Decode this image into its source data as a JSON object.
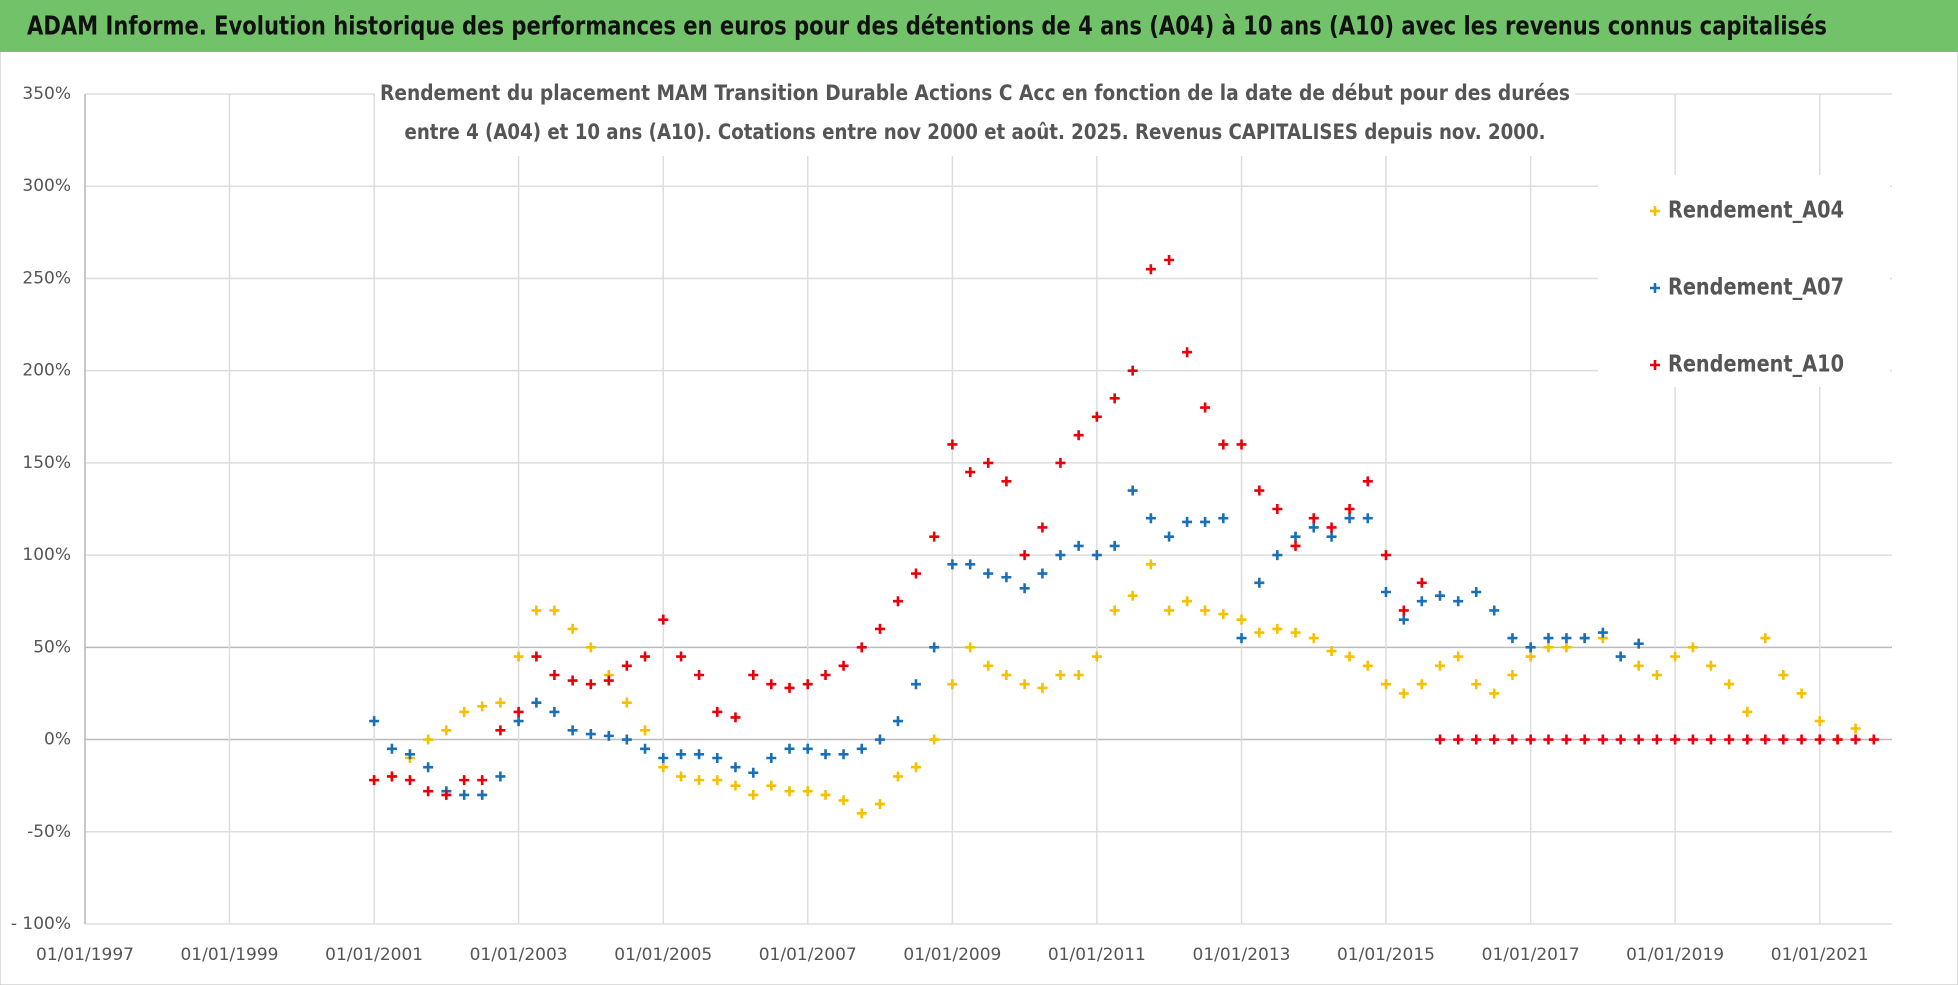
{
  "chart_data": {
    "type": "scatter",
    "title": "ADAM Informe. Evolution historique des performances en euros pour des détentions de 4 ans (A04) à 10 ans (A10) avec les revenus connus capitalisés",
    "subtitle": [
      "Rendement du placement MAM Transition Durable Actions C Acc en fonction de la date de début pour des durées",
      "entre 4 (A04) et 10 ans (A10). Cotations entre nov 2000 et août. 2025. Revenus CAPITALISES depuis nov. 2000."
    ],
    "x": [
      "01/01/2001",
      "01/04/2001",
      "01/07/2001",
      "01/10/2001",
      "01/01/2002",
      "01/04/2002",
      "01/07/2002",
      "01/10/2002",
      "01/01/2003",
      "01/04/2003",
      "01/07/2003",
      "01/10/2003",
      "01/01/2004",
      "01/04/2004",
      "01/07/2004",
      "01/10/2004",
      "01/01/2005",
      "01/04/2005",
      "01/07/2005",
      "01/10/2005",
      "01/01/2006",
      "01/04/2006",
      "01/07/2006",
      "01/10/2006",
      "01/01/2007",
      "01/04/2007",
      "01/07/2007",
      "01/10/2007",
      "01/01/2008",
      "01/04/2008",
      "01/07/2008",
      "01/10/2008",
      "01/01/2009",
      "01/04/2009",
      "01/07/2009",
      "01/10/2009",
      "01/01/2010",
      "01/04/2010",
      "01/07/2010",
      "01/10/2010",
      "01/01/2011",
      "01/04/2011",
      "01/07/2011",
      "01/10/2011",
      "01/01/2012",
      "01/04/2012",
      "01/07/2012",
      "01/10/2012",
      "01/01/2013",
      "01/04/2013",
      "01/07/2013",
      "01/10/2013",
      "01/01/2014",
      "01/04/2014",
      "01/07/2014",
      "01/10/2014",
      "01/01/2015",
      "01/04/2015",
      "01/07/2015",
      "01/10/2015",
      "01/01/2016",
      "01/04/2016",
      "01/07/2016",
      "01/10/2016",
      "01/01/2017",
      "01/04/2017",
      "01/07/2017",
      "01/10/2017",
      "01/01/2018",
      "01/04/2018",
      "01/07/2018",
      "01/10/2018",
      "01/01/2019",
      "01/04/2019",
      "01/07/2019",
      "01/10/2019",
      "01/01/2020",
      "01/04/2020",
      "01/07/2020",
      "01/10/2020",
      "01/01/2021",
      "01/04/2021",
      "01/07/2021",
      "01/10/2021"
    ],
    "series": [
      {
        "name": "Rendement_A04",
        "color": "#f5c000",
        "values": [
          -22,
          -20,
          -10,
          0,
          5,
          15,
          18,
          20,
          45,
          70,
          70,
          60,
          50,
          35,
          20,
          5,
          -15,
          -20,
          -22,
          -22,
          -25,
          -30,
          -25,
          -28,
          -28,
          -30,
          -33,
          -40,
          -35,
          -20,
          -15,
          0,
          30,
          50,
          40,
          35,
          30,
          28,
          35,
          35,
          45,
          70,
          78,
          95,
          70,
          75,
          70,
          68,
          65,
          58,
          60,
          58,
          55,
          48,
          45,
          40,
          30,
          25,
          30,
          40,
          45,
          30,
          25,
          35,
          45,
          50,
          50,
          55,
          55,
          45,
          40,
          35,
          45,
          50,
          40,
          30,
          15,
          55,
          35,
          25,
          10,
          0,
          6,
          null
        ]
      },
      {
        "name": "Rendement_A07",
        "color": "#1a6fb5",
        "values": [
          10,
          -5,
          -8,
          -15,
          -28,
          -30,
          -30,
          -20,
          10,
          20,
          15,
          5,
          3,
          2,
          0,
          -5,
          -10,
          -8,
          -8,
          -10,
          -15,
          -18,
          -10,
          -5,
          -5,
          -8,
          -8,
          -5,
          0,
          10,
          30,
          50,
          95,
          95,
          90,
          88,
          82,
          90,
          100,
          105,
          100,
          105,
          135,
          120,
          110,
          118,
          118,
          120,
          55,
          85,
          100,
          110,
          115,
          110,
          120,
          120,
          80,
          65,
          75,
          78,
          75,
          80,
          70,
          55,
          50,
          55,
          55,
          55,
          58,
          45,
          52,
          null,
          null,
          null,
          null,
          null,
          null,
          null,
          null,
          null,
          null,
          null,
          null,
          null
        ]
      },
      {
        "name": "Rendement_A10",
        "color": "#e8000b",
        "values": [
          -22,
          -20,
          -22,
          -28,
          -30,
          -22,
          -22,
          5,
          15,
          45,
          35,
          32,
          30,
          32,
          40,
          45,
          65,
          45,
          35,
          15,
          12,
          35,
          30,
          28,
          30,
          35,
          40,
          50,
          60,
          75,
          90,
          110,
          160,
          145,
          150,
          140,
          100,
          115,
          150,
          165,
          175,
          185,
          200,
          255,
          260,
          210,
          180,
          160,
          160,
          135,
          125,
          105,
          120,
          115,
          125,
          140,
          100,
          70,
          85,
          0,
          0,
          0,
          0,
          0,
          0,
          0,
          0,
          0,
          0,
          0,
          0,
          0,
          0,
          0,
          0,
          0,
          0,
          0,
          0,
          0,
          0,
          0,
          0,
          0
        ]
      }
    ],
    "xlim": [
      "01/01/1997",
      "01/01/2022"
    ],
    "xticks": [
      "01/01/1997",
      "01/01/1999",
      "01/01/2001",
      "01/01/2003",
      "01/01/2005",
      "01/01/2007",
      "01/01/2009",
      "01/01/2011",
      "01/01/2013",
      "01/01/2015",
      "01/01/2017",
      "01/01/2019",
      "01/01/2021"
    ],
    "ylim": [
      -100,
      350
    ],
    "yticks": [
      {
        "value": -100,
        "label": "- 100%"
      },
      {
        "value": -50,
        "label": "-50%"
      },
      {
        "value": 0,
        "label": "0%"
      },
      {
        "value": 50,
        "label": "50%"
      },
      {
        "value": 100,
        "label": "100%"
      },
      {
        "value": 150,
        "label": "150%"
      },
      {
        "value": 200,
        "label": "200%"
      },
      {
        "value": 250,
        "label": "250%"
      },
      {
        "value": 300,
        "label": "300%"
      },
      {
        "value": 350,
        "label": "350%"
      }
    ],
    "grid": true,
    "legend": "upper right",
    "marker": "+"
  }
}
